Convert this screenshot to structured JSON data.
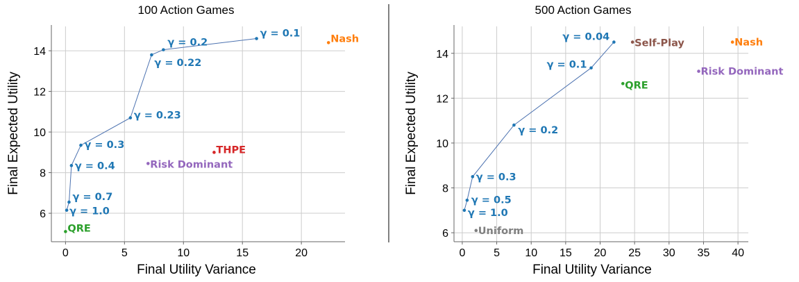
{
  "chart_data": [
    {
      "type": "scatter",
      "title": "100 Action Games",
      "xlabel": "Final Utility Variance",
      "ylabel": "Final Expected Utility",
      "xlim": [
        -1.2,
        23.7
      ],
      "ylim": [
        4.6,
        15.2
      ],
      "xticks": [
        0,
        5,
        10,
        15,
        20
      ],
      "yticks": [
        6,
        8,
        10,
        12,
        14
      ],
      "grid": true,
      "line_color": "#4c72b0",
      "frontier": [
        {
          "label": "γ = 1.0",
          "x": 0.1,
          "y": 6.15,
          "color": "#1f77b4"
        },
        {
          "label": "γ = 0.7",
          "x": 0.3,
          "y": 6.55,
          "color": "#1f77b4"
        },
        {
          "label": "γ = 0.4",
          "x": 0.5,
          "y": 8.35,
          "color": "#1f77b4"
        },
        {
          "label": "γ = 0.3",
          "x": 1.3,
          "y": 9.35,
          "color": "#1f77b4"
        },
        {
          "label": "γ = 0.23",
          "x": 5.5,
          "y": 10.7,
          "color": "#1f77b4"
        },
        {
          "label": "γ = 0.22",
          "x": 7.3,
          "y": 13.8,
          "color": "#1f77b4"
        },
        {
          "label": "γ = 0.2",
          "x": 8.3,
          "y": 14.05,
          "color": "#1f77b4"
        },
        {
          "label": "γ = 0.1",
          "x": 16.2,
          "y": 14.6,
          "color": "#1f77b4"
        }
      ],
      "points": [
        {
          "label": "Nash",
          "x": 22.3,
          "y": 14.4,
          "color": "#ff7f0e"
        },
        {
          "label": "THPE",
          "x": 12.6,
          "y": 9.0,
          "color": "#d62728"
        },
        {
          "label": "Risk Dominant",
          "x": 7.0,
          "y": 8.45,
          "color": "#9467bd"
        },
        {
          "label": "QRE",
          "x": 0.0,
          "y": 5.1,
          "color": "#2ca02c"
        }
      ]
    },
    {
      "type": "scatter",
      "title": "500 Action Games",
      "xlabel": "Final Utility Variance",
      "ylabel": "Final Expected Utility",
      "xlim": [
        -1.2,
        41.5
      ],
      "ylim": [
        5.6,
        15.2
      ],
      "xticks": [
        0,
        5,
        10,
        15,
        20,
        25,
        30,
        35,
        40
      ],
      "yticks": [
        6,
        8,
        10,
        12,
        14
      ],
      "grid": true,
      "line_color": "#4c72b0",
      "frontier": [
        {
          "label": "γ = 1.0",
          "x": 0.3,
          "y": 7.0,
          "color": "#1f77b4"
        },
        {
          "label": "γ = 0.5",
          "x": 0.7,
          "y": 7.45,
          "color": "#1f77b4"
        },
        {
          "label": "γ = 0.3",
          "x": 1.5,
          "y": 8.5,
          "color": "#1f77b4"
        },
        {
          "label": "γ = 0.2",
          "x": 7.5,
          "y": 10.8,
          "color": "#1f77b4"
        },
        {
          "label": "γ = 0.1",
          "x": 18.7,
          "y": 13.35,
          "color": "#1f77b4"
        },
        {
          "label": "γ = 0.04",
          "x": 22.0,
          "y": 14.5,
          "color": "#1f77b4"
        }
      ],
      "points": [
        {
          "label": "Self-Play",
          "x": 24.7,
          "y": 14.5,
          "color": "#8c564b"
        },
        {
          "label": "Nash",
          "x": 39.2,
          "y": 14.5,
          "color": "#ff7f0e"
        },
        {
          "label": "Risk Dominant",
          "x": 34.3,
          "y": 13.2,
          "color": "#9467bd"
        },
        {
          "label": "QRE",
          "x": 23.3,
          "y": 12.65,
          "color": "#2ca02c"
        },
        {
          "label": "Uniform",
          "x": 2.0,
          "y": 6.1,
          "color": "#7f7f7f"
        }
      ]
    }
  ]
}
